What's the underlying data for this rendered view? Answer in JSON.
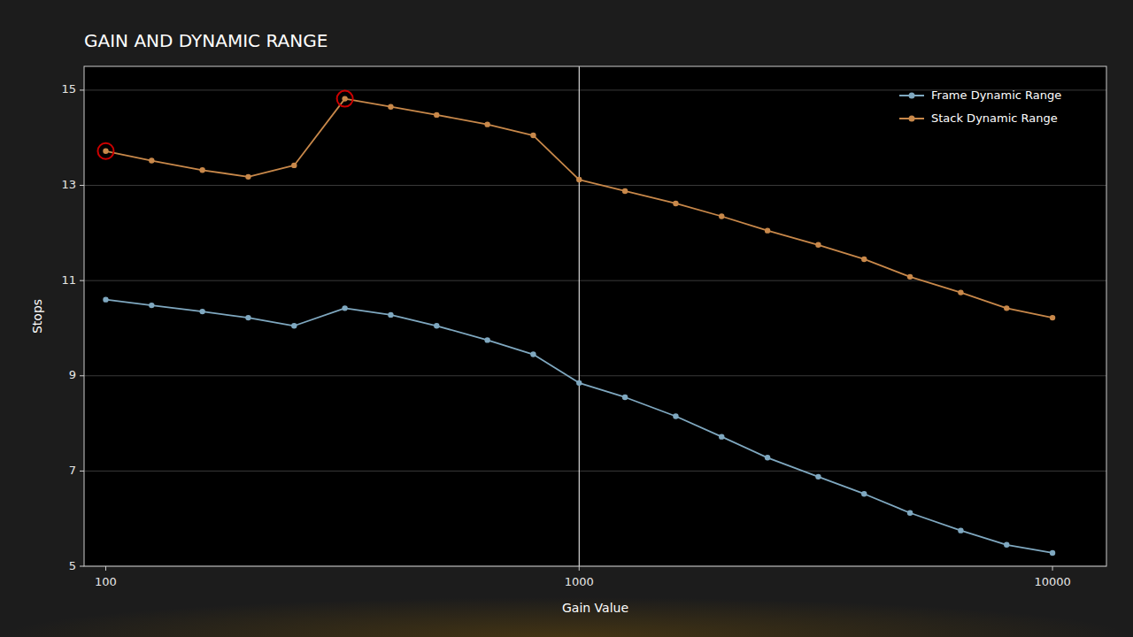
{
  "chart_data": {
    "type": "line",
    "title": "GAIN AND DYNAMIC RANGE",
    "x_label": "Gain Value",
    "y_label": "Stops",
    "x": [
      100,
      125,
      160,
      200,
      250,
      320,
      400,
      500,
      640,
      800,
      1000,
      1250,
      1600,
      2000,
      2500,
      3200,
      4000,
      5000,
      6400,
      8000,
      10000
    ],
    "series": [
      {
        "name": "Frame Dynamic Range",
        "color": "#7fa8c0",
        "marker": "circle",
        "values": [
          10.6,
          10.48,
          10.35,
          10.22,
          10.05,
          10.42,
          10.28,
          10.05,
          9.75,
          9.45,
          8.85,
          8.55,
          8.15,
          7.72,
          7.28,
          6.88,
          6.52,
          6.12,
          5.75,
          5.45,
          5.28
        ]
      },
      {
        "name": "Stack Dynamic Range",
        "color": "#c8884a",
        "marker": "circle",
        "values": [
          13.72,
          13.52,
          13.32,
          13.18,
          13.42,
          14.82,
          14.65,
          14.48,
          14.28,
          14.05,
          13.12,
          12.88,
          12.62,
          12.35,
          12.05,
          11.75,
          11.45,
          11.08,
          10.75,
          10.42,
          10.22
        ]
      }
    ],
    "annotations": [
      {
        "type": "point",
        "marker": "circle",
        "x": 100,
        "y": 13.72,
        "color": "#cc0000"
      },
      {
        "type": "point",
        "marker": "circle",
        "x": 320,
        "y": 14.82,
        "color": "#cc0000"
      },
      {
        "type": "vline",
        "x": 1000,
        "color": "#ffffff"
      }
    ],
    "log": "x",
    "xlim": [
      90,
      13000
    ],
    "xticks": [
      100,
      1000,
      10000
    ],
    "ylim": [
      5,
      15.5
    ],
    "yticks": [
      5,
      7,
      9,
      11,
      13,
      15
    ],
    "grid": "y",
    "legend": "upper right"
  }
}
